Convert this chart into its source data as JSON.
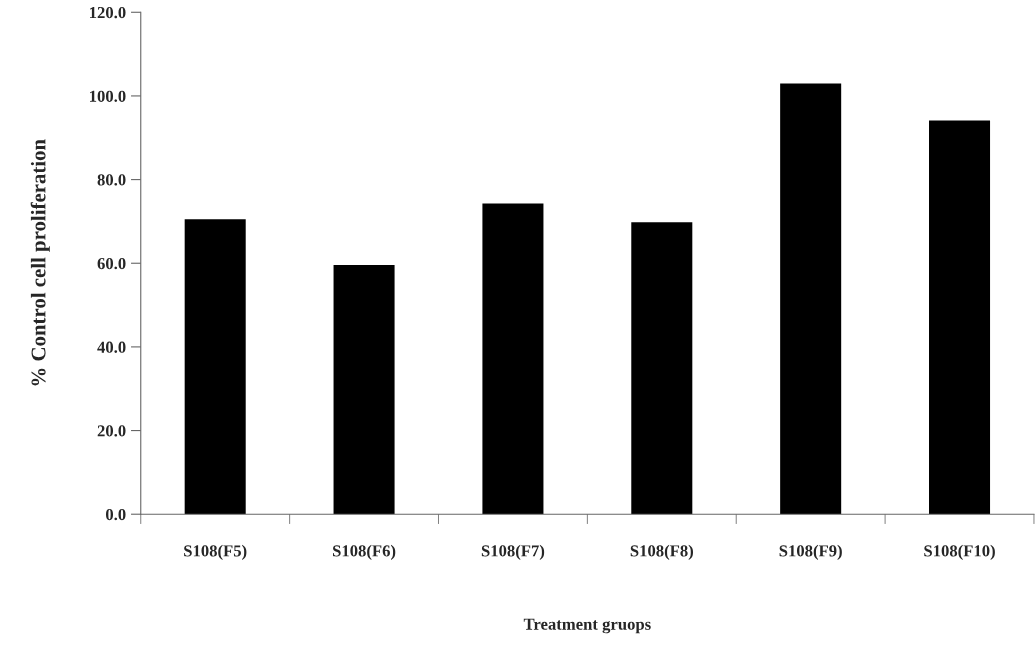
{
  "chart_data": {
    "type": "bar",
    "xlabel": "Treatment gruops",
    "ylabel": "% Control cell proliferation",
    "categories": [
      "S108(F5)",
      "S108(F6)",
      "S108(F7)",
      "S108(F8)",
      "S108(F9)",
      "S108(F10)"
    ],
    "values": [
      70.5,
      59.6,
      74.3,
      69.8,
      103.0,
      94.1
    ],
    "color": "#000000",
    "ylim": [
      0,
      120
    ],
    "yticks": [
      {
        "value": 0,
        "label": "0.0"
      },
      {
        "value": 20,
        "label": "20.0"
      },
      {
        "value": 40,
        "label": "40.0"
      },
      {
        "value": 60,
        "label": "60.0"
      },
      {
        "value": 80,
        "label": "80.0"
      },
      {
        "value": 100,
        "label": "100.0"
      },
      {
        "value": 120,
        "label": "120.0"
      }
    ],
    "grid": false,
    "legend": false
  }
}
